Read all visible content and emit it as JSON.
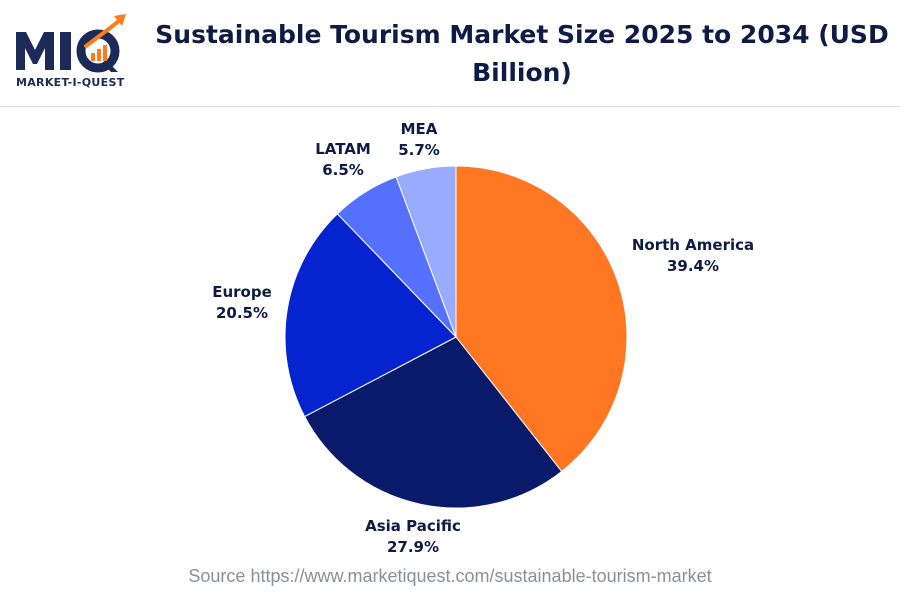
{
  "logo": {
    "mark": "MIQ",
    "subtitle": "MARKET-I-QUEST",
    "icon": "growth-arrow-icon"
  },
  "title": "Sustainable Tourism Market Size 2025 to 2034 (USD Billion)",
  "source": "Source https://www.marketiquest.com/sustainable-tourism-market",
  "chart_data": {
    "type": "pie",
    "title": "Sustainable Tourism Market Size 2025 to 2034 (USD Billion)",
    "slices": [
      {
        "label": "North America",
        "value": 39.4,
        "value_text": "39.4%",
        "color": "#ff7722"
      },
      {
        "label": "Asia Pacific",
        "value": 27.9,
        "value_text": "27.9%",
        "color": "#0a1a6b"
      },
      {
        "label": "Europe",
        "value": 20.5,
        "value_text": "20.5%",
        "color": "#0524d0"
      },
      {
        "label": "LATAM",
        "value": 6.5,
        "value_text": "6.5%",
        "color": "#5570ff"
      },
      {
        "label": "MEA",
        "value": 5.7,
        "value_text": "5.7%",
        "color": "#99abff"
      }
    ]
  }
}
